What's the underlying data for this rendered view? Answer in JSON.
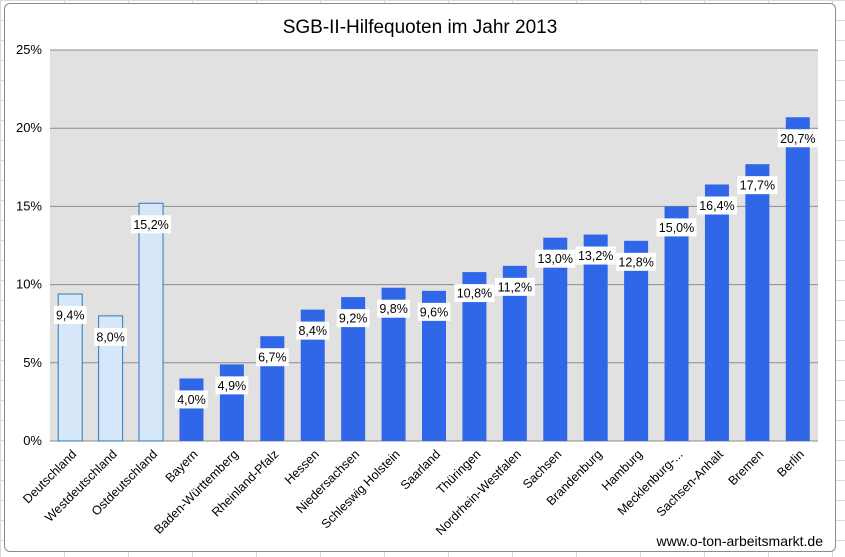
{
  "chart_data": {
    "type": "bar",
    "title": "SGB-II-Hilfequoten im Jahr 2013",
    "xlabel": "",
    "ylabel": "",
    "ylim": [
      0,
      25
    ],
    "y_ticks": [
      "0%",
      "5%",
      "10%",
      "15%",
      "20%",
      "25%"
    ],
    "grid": true,
    "categories": [
      "Deutschland",
      "Westdeutschland",
      "Ostdeutschland",
      "Bayern",
      "Baden-Württemberg",
      "Rheinland-Pfalz",
      "Hessen",
      "Niedersachsen",
      "Schleswig Holstein",
      "Saarland",
      "Thüringen",
      "Nordrhein-Westfalen",
      "Sachsen",
      "Brandenburg",
      "Hamburg",
      "Mecklenburg-...",
      "Sachsen-Anhalt",
      "Bremen",
      "Berlin"
    ],
    "values": [
      9.4,
      8.0,
      15.2,
      4.0,
      4.9,
      6.7,
      8.4,
      9.2,
      9.8,
      9.6,
      10.8,
      11.2,
      13.0,
      13.2,
      12.8,
      15.0,
      16.4,
      17.7,
      20.7
    ],
    "labels": [
      "9,4%",
      "8,0%",
      "15,2%",
      "4,0%",
      "4,9%",
      "6,7%",
      "8,4%",
      "9,2%",
      "9,8%",
      "9,6%",
      "10,8%",
      "11,2%",
      "13,0%",
      "13,2%",
      "12,8%",
      "15,0%",
      "16,4%",
      "17,7%",
      "20,7%"
    ],
    "colors": {
      "highlight_fill": "#d6e7fa",
      "highlight_stroke": "#2a7ab8",
      "bar_fill": "#2f67e8",
      "plot_bg": "#e1e1e1",
      "grid": "#8c8c8c"
    },
    "highlight_count": 3
  },
  "credit": "www.o-ton-arbeitsmarkt.de"
}
